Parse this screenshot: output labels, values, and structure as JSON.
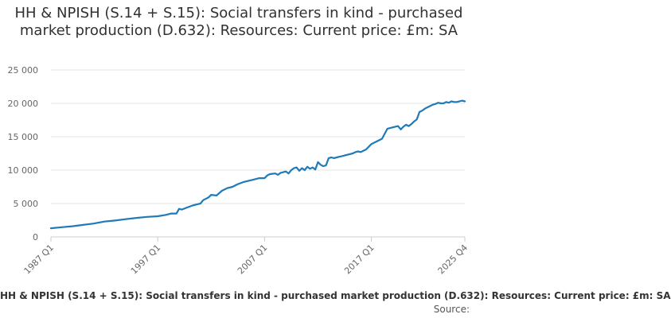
{
  "colors": {
    "series": "#1f7ab8",
    "grid": "#e6e6e6",
    "axis": "#cccccc",
    "text": "#323132"
  },
  "caption": "HH & NPISH (S.14 + S.15): Social transfers in kind - purchased market production (D.632): Resources: Current price: £m: SA",
  "source_label": "Source:",
  "chart_data": {
    "type": "line",
    "title": "HH & NPISH (S.14 + S.15): Social transfers in kind - purchased market production (D.632): Resources: Current price: £m: SA",
    "xlabel": "",
    "ylabel": "",
    "xlim": [
      1987.0,
      2025.75
    ],
    "ylim": [
      0,
      25000
    ],
    "yticks": [
      0,
      5000,
      10000,
      15000,
      20000,
      25000
    ],
    "ytick_labels": [
      "0",
      "5 000",
      "10 000",
      "15 000",
      "20 000",
      "25 000"
    ],
    "xticks": [
      1987.0,
      1997.0,
      2007.0,
      2017.0,
      2025.75
    ],
    "xtick_labels": [
      "1987 Q1",
      "1997 Q1",
      "2007 Q1",
      "2017 Q1",
      "2025 Q4"
    ],
    "grid": true,
    "legend": "none",
    "series": [
      {
        "x": [
          1987.0,
          1988.0,
          1989.0,
          1990.0,
          1991.0,
          1992.0,
          1993.0,
          1994.0,
          1995.0,
          1996.0,
          1997.0,
          1997.75,
          1998.25,
          1998.75,
          1999.0,
          1999.25,
          1999.75,
          2000.25,
          2000.75,
          2001.0,
          2001.25,
          2001.75,
          2002.0,
          2002.5,
          2003.0,
          2003.5,
          2004.0,
          2004.5,
          2005.0,
          2005.5,
          2006.0,
          2006.5,
          2007.0,
          2007.25,
          2007.5,
          2008.0,
          2008.25,
          2008.5,
          2009.0,
          2009.25,
          2009.5,
          2009.75,
          2010.0,
          2010.25,
          2010.5,
          2010.75,
          2011.0,
          2011.25,
          2011.5,
          2011.75,
          2012.0,
          2012.25,
          2012.5,
          2012.75,
          2013.0,
          2013.25,
          2013.5,
          2013.75,
          2014.0,
          2014.25,
          2014.5,
          2014.75,
          2015.0,
          2015.25,
          2015.5,
          2015.75,
          2016.0,
          2016.25,
          2016.5,
          2017.0,
          2017.5,
          2018.0,
          2018.5,
          2019.0,
          2019.5,
          2019.75,
          2020.0,
          2020.25,
          2020.5,
          2020.75,
          2021.0,
          2021.25,
          2021.5,
          2021.75,
          2022.0,
          2022.25,
          2022.5,
          2022.75,
          2023.0,
          2023.25,
          2023.5,
          2023.75,
          2024.0,
          2024.25,
          2024.5,
          2024.75,
          2025.0,
          2025.25,
          2025.5,
          2025.75
        ],
        "values": [
          1300,
          1450,
          1600,
          1800,
          2000,
          2300,
          2450,
          2650,
          2850,
          3000,
          3100,
          3300,
          3500,
          3500,
          4200,
          4100,
          4400,
          4700,
          4900,
          5000,
          5500,
          5900,
          6300,
          6200,
          6900,
          7300,
          7500,
          7900,
          8200,
          8400,
          8600,
          8800,
          8800,
          9200,
          9400,
          9500,
          9300,
          9600,
          9800,
          9500,
          10000,
          10300,
          10400,
          9900,
          10300,
          10000,
          10500,
          10200,
          10400,
          10100,
          11200,
          10800,
          10600,
          10700,
          11800,
          11900,
          11800,
          11900,
          12000,
          12100,
          12200,
          12300,
          12400,
          12500,
          12700,
          12800,
          12700,
          12900,
          13100,
          13900,
          14300,
          14700,
          16200,
          16400,
          16600,
          16100,
          16500,
          16800,
          16600,
          16900,
          17300,
          17600,
          18700,
          18900,
          19200,
          19400,
          19600,
          19800,
          19900,
          20100,
          20000,
          20000,
          20200,
          20100,
          20300,
          20200,
          20200,
          20300,
          20400,
          20300
        ]
      }
    ]
  }
}
